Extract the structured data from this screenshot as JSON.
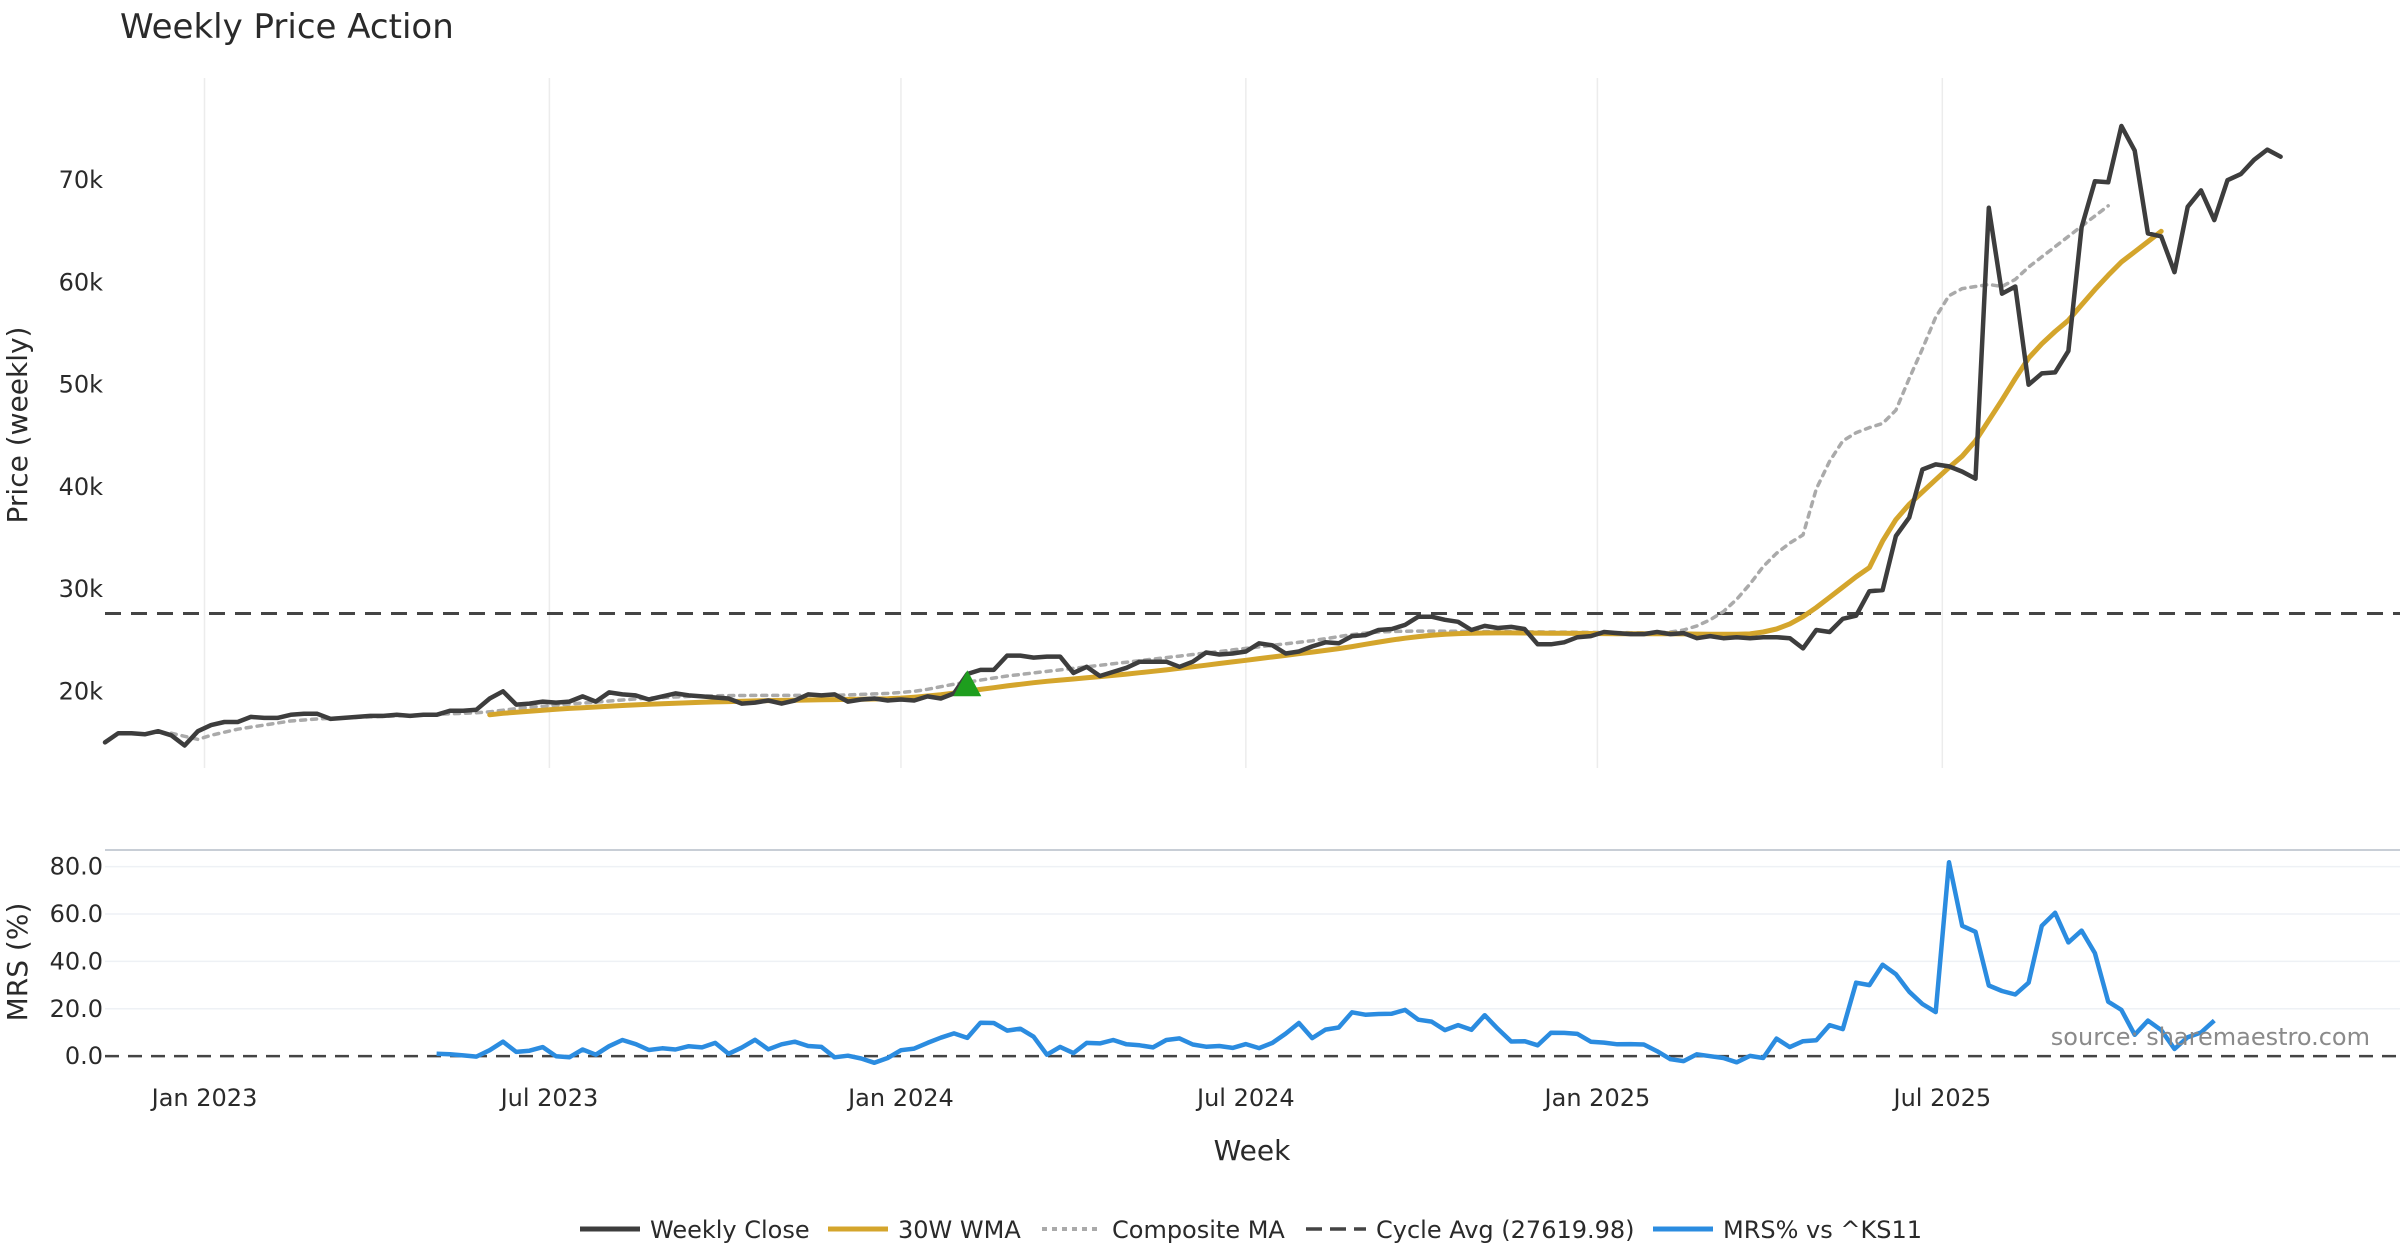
{
  "chart_data": [
    {
      "type": "line",
      "title": "Weekly Price Action",
      "xlabel": "Week",
      "ylabel": "Price (weekly)",
      "ylim": [
        12500,
        80000
      ],
      "y_ticks": [
        {
          "value": 20000,
          "label": "20k"
        },
        {
          "value": 30000,
          "label": "30k"
        },
        {
          "value": 40000,
          "label": "40k"
        },
        {
          "value": 50000,
          "label": "50k"
        },
        {
          "value": 60000,
          "label": "60k"
        },
        {
          "value": 70000,
          "label": "70k"
        }
      ],
      "x_range_weeks": [
        0,
        173
      ],
      "x_ticks": [
        {
          "week": 7.5,
          "label": "Jan 2023"
        },
        {
          "week": 33.5,
          "label": "Jul 2023"
        },
        {
          "week": 60,
          "label": "Jan 2024"
        },
        {
          "week": 86,
          "label": "Jul 2024"
        },
        {
          "week": 112.5,
          "label": "Jan 2025"
        },
        {
          "week": 138.5,
          "label": "Jul 2025"
        }
      ],
      "cycle_avg": 27619.98,
      "buy_marker": {
        "week": 65,
        "value": 20400
      },
      "series": [
        {
          "name": "Weekly Close",
          "color": "#3d3d3d",
          "start_week": 0,
          "values": [
            15000,
            15900,
            15900,
            15800,
            16100,
            15700,
            14700,
            16100,
            16700,
            17000,
            17000,
            17500,
            17400,
            17400,
            17700,
            17800,
            17800,
            17300,
            17400,
            17500,
            17600,
            17600,
            17700,
            17600,
            17700,
            17700,
            18100,
            18100,
            18200,
            19300,
            20000,
            18700,
            18800,
            19000,
            18900,
            19000,
            19500,
            19000,
            19900,
            19700,
            19600,
            19200,
            19500,
            19800,
            19600,
            19500,
            19400,
            19300,
            18800,
            18900,
            19100,
            18800,
            19100,
            19700,
            19600,
            19700,
            19000,
            19200,
            19300,
            19100,
            19200,
            19100,
            19500,
            19300,
            19800,
            21700,
            22100,
            22100,
            23500,
            23500,
            23300,
            23400,
            23400,
            21800,
            22400,
            21500,
            21900,
            22300,
            22900,
            22900,
            22900,
            22400,
            22900,
            23800,
            23600,
            23700,
            23900,
            24700,
            24500,
            23700,
            23900,
            24400,
            24800,
            24700,
            25400,
            25500,
            26000,
            26100,
            26500,
            27300,
            27300,
            27000,
            26800,
            26000,
            26400,
            26200,
            26300,
            26100,
            24600,
            24600,
            24800,
            25300,
            25400,
            25800,
            25700,
            25600,
            25600,
            25800,
            25600,
            25700,
            25200,
            25400,
            25200,
            25300,
            25200,
            25300,
            25300,
            25200,
            24200,
            26000,
            25800,
            27100,
            27400,
            29800,
            29900,
            35200,
            37000,
            41700,
            42200,
            42000,
            41500,
            40800,
            67300,
            58900,
            59600,
            50000,
            51100,
            51200,
            53300,
            65400,
            69900,
            69800,
            75300,
            72900,
            64800,
            64500,
            61000,
            67400,
            69000,
            66100,
            70000,
            70600,
            72000,
            73000,
            72300
          ]
        },
        {
          "name": "30W WMA",
          "color": "#d4a52c",
          "start_week": 29,
          "values": [
            17700,
            17850,
            17950,
            18050,
            18150,
            18250,
            18330,
            18400,
            18470,
            18540,
            18610,
            18670,
            18730,
            18790,
            18840,
            18890,
            18930,
            18970,
            19000,
            19030,
            19060,
            19090,
            19110,
            19130,
            19150,
            19170,
            19190,
            19210,
            19230,
            19250,
            19280,
            19340,
            19430,
            19540,
            19670,
            19830,
            20010,
            20190,
            20360,
            20530,
            20690,
            20840,
            20980,
            21100,
            21210,
            21320,
            21440,
            21560,
            21690,
            21820,
            21960,
            22100,
            22250,
            22400,
            22560,
            22720,
            22880,
            23040,
            23200,
            23360,
            23520,
            23680,
            23840,
            24000,
            24180,
            24380,
            24600,
            24820,
            25020,
            25200,
            25350,
            25480,
            25580,
            25650,
            25690,
            25710,
            25720,
            25720,
            25710,
            25700,
            25690,
            25680,
            25670,
            25660,
            25650,
            25640,
            25640,
            25640,
            25630,
            25630,
            25620,
            25600,
            25590,
            25580,
            25580,
            25620,
            25800,
            26100,
            26600,
            27300,
            28200,
            29200,
            30200,
            31200,
            32100,
            34700,
            36800,
            38300,
            39500,
            40700,
            41900,
            43000,
            44500,
            46500,
            48500,
            50600,
            52600,
            54000,
            55200,
            56300,
            57800,
            59300,
            60700,
            62000,
            63000,
            64000,
            65000
          ]
        },
        {
          "name": "Composite MA",
          "color": "#aaaaaa",
          "start_week": 5,
          "values": [
            15900,
            15600,
            15300,
            15700,
            16000,
            16300,
            16500,
            16700,
            16900,
            17100,
            17200,
            17300,
            17350,
            17400,
            17450,
            17500,
            17550,
            17600,
            17650,
            17700,
            17750,
            17800,
            17850,
            17900,
            18000,
            18150,
            18300,
            18450,
            18550,
            18650,
            18750,
            18850,
            18950,
            19050,
            19150,
            19250,
            19330,
            19400,
            19450,
            19500,
            19530,
            19560,
            19580,
            19590,
            19600,
            19600,
            19600,
            19600,
            19600,
            19600,
            19600,
            19650,
            19700,
            19750,
            19800,
            19900,
            20000,
            20200,
            20450,
            20700,
            20900,
            21100,
            21300,
            21500,
            21650,
            21800,
            21950,
            22100,
            22250,
            22400,
            22550,
            22700,
            22850,
            23000,
            23150,
            23300,
            23450,
            23600,
            23750,
            23900,
            24050,
            24200,
            24350,
            24500,
            24650,
            24800,
            24950,
            25150,
            25350,
            25550,
            25700,
            25800,
            25850,
            25880,
            25890,
            25890,
            25880,
            25870,
            25860,
            25850,
            25840,
            25830,
            25820,
            25810,
            25800,
            25790,
            25780,
            25770,
            25760,
            25750,
            25740,
            25730,
            25730,
            25800,
            26000,
            26400,
            27000,
            27800,
            29000,
            30500,
            32200,
            33500,
            34500,
            35300,
            39800,
            42500,
            44500,
            45300,
            45800,
            46200,
            47500,
            50600,
            53500,
            56600,
            58700,
            59400,
            59600,
            59800,
            59600,
            60300,
            61500,
            62500,
            63500,
            64500,
            65500,
            66500,
            67500
          ]
        },
        {
          "name": "Cycle Avg (27619.98)",
          "color": "#444444",
          "constant": 27619.98
        }
      ]
    },
    {
      "type": "line",
      "ylabel": "MRS (%)",
      "ylim": [
        -5,
        87
      ],
      "y_ticks": [
        {
          "value": 0,
          "label": "0.0"
        },
        {
          "value": 20,
          "label": "20.0"
        },
        {
          "value": 40,
          "label": "40.0"
        },
        {
          "value": 60,
          "label": "60.0"
        },
        {
          "value": 80,
          "label": "80.0"
        }
      ],
      "series": [
        {
          "name": "MRS% vs ^KS11",
          "color": "#2b8ce0",
          "start_week": 25,
          "values": [
            1.0,
            0.8,
            0.3,
            -0.2,
            2.5,
            6.1,
            1.8,
            2.3,
            3.8,
            0.0,
            -0.5,
            2.8,
            0.6,
            4.2,
            6.8,
            5.1,
            2.6,
            3.3,
            2.8,
            4.2,
            3.7,
            5.6,
            1.0,
            3.6,
            6.9,
            2.9,
            5.0,
            6.1,
            4.3,
            3.9,
            -0.5,
            0.2,
            -1.0,
            -2.8,
            -0.8,
            2.5,
            3.2,
            5.6,
            7.8,
            9.6,
            7.7,
            14.1,
            14.0,
            10.8,
            11.6,
            8.2,
            0.6,
            3.9,
            1.3,
            5.6,
            5.4,
            6.8,
            5.0,
            4.6,
            3.7,
            6.8,
            7.5,
            4.9,
            4.0,
            4.3,
            3.5,
            5.1,
            3.4,
            5.6,
            9.5,
            14.0,
            7.6,
            11.2,
            12.1,
            18.5,
            17.5,
            17.8,
            17.9,
            19.5,
            15.4,
            14.6,
            11.0,
            13.1,
            11.1,
            17.3,
            11.5,
            6.2,
            6.3,
            4.6,
            9.9,
            9.8,
            9.4,
            6.1,
            5.7,
            5.0,
            5.1,
            4.9,
            2.1,
            -1.3,
            -2.1,
            0.8,
            0.0,
            -0.8,
            -2.6,
            0.1,
            -0.8,
            7.4,
            3.8,
            6.3,
            6.7,
            13.1,
            11.4,
            31.0,
            30.0,
            38.6,
            34.6,
            27.2,
            22.0,
            18.6,
            81.8,
            55.0,
            52.5,
            29.8,
            27.5,
            26.0,
            31.0,
            55.0,
            60.5,
            48.0,
            53.0,
            43.5,
            23.0,
            19.5,
            9.0,
            15.0,
            11.0,
            3.0,
            8.0,
            10.0,
            15.0
          ]
        }
      ]
    }
  ],
  "legend": [
    {
      "label": "Weekly Close",
      "style": "solid",
      "color": "#3d3d3d"
    },
    {
      "label": "30W WMA",
      "style": "solid",
      "color": "#d4a52c"
    },
    {
      "label": "Composite MA",
      "style": "dotted",
      "color": "#aaaaaa"
    },
    {
      "label": "Cycle Avg (27619.98)",
      "style": "dashed",
      "color": "#444444"
    },
    {
      "label": "MRS% vs ^KS11",
      "style": "solid",
      "color": "#2b8ce0"
    }
  ],
  "marker_color": "#1e9e1e",
  "source_note": "source: sharemaestro.com"
}
